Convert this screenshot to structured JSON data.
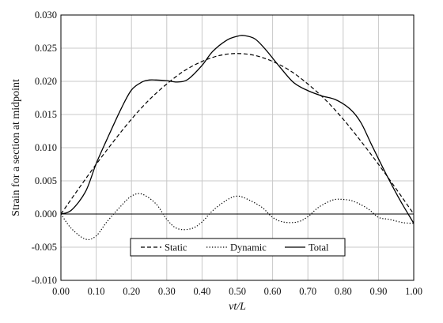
{
  "chart_data": {
    "type": "line",
    "xlabel": "vt/L",
    "ylabel": "Strain for a section at midpoint",
    "xlim": [
      0,
      1
    ],
    "ylim": [
      -0.01,
      0.03
    ],
    "x_ticks": [
      "0.00",
      "0.10",
      "0.20",
      "0.30",
      "0.40",
      "0.50",
      "0.60",
      "0.70",
      "0.80",
      "0.90",
      "1.00"
    ],
    "y_ticks": [
      "-0.010",
      "-0.005",
      "0.000",
      "0.005",
      "0.010",
      "0.015",
      "0.020",
      "0.025",
      "0.030"
    ],
    "grid": true,
    "legend_position": "bottom-center",
    "series": [
      {
        "name": "Static",
        "line_style": "dashed",
        "color": "#000000",
        "x": [
          0.0,
          0.05,
          0.1,
          0.15,
          0.2,
          0.25,
          0.3,
          0.35,
          0.4,
          0.45,
          0.5,
          0.55,
          0.6,
          0.65,
          0.7,
          0.75,
          0.8,
          0.85,
          0.9,
          0.95,
          1.0
        ],
        "y": [
          0.0,
          0.0038,
          0.0075,
          0.011,
          0.0143,
          0.0172,
          0.0196,
          0.0216,
          0.023,
          0.0239,
          0.0242,
          0.0239,
          0.023,
          0.0216,
          0.0196,
          0.0172,
          0.0143,
          0.011,
          0.0075,
          0.0038,
          0.0
        ]
      },
      {
        "name": "Dynamic",
        "line_style": "dotted",
        "color": "#000000",
        "x": [
          0.0,
          0.03,
          0.07,
          0.1,
          0.13,
          0.17,
          0.2,
          0.23,
          0.27,
          0.3,
          0.33,
          0.37,
          0.4,
          0.43,
          0.47,
          0.5,
          0.53,
          0.57,
          0.6,
          0.63,
          0.67,
          0.7,
          0.73,
          0.77,
          0.8,
          0.83,
          0.87,
          0.9,
          0.93,
          0.97,
          1.0
        ],
        "y": [
          0.0,
          -0.0022,
          -0.0038,
          -0.0033,
          -0.0012,
          0.0012,
          0.0027,
          0.003,
          0.0015,
          -0.0008,
          -0.0022,
          -0.0022,
          -0.0012,
          0.0005,
          0.0021,
          0.0027,
          0.0022,
          0.001,
          -0.0005,
          -0.0012,
          -0.0012,
          -0.0004,
          0.001,
          0.0021,
          0.0022,
          0.0019,
          0.0008,
          -0.0005,
          -0.0008,
          -0.0013,
          -0.0014
        ]
      },
      {
        "name": "Total",
        "line_style": "solid",
        "color": "#000000",
        "x": [
          0.0,
          0.03,
          0.07,
          0.1,
          0.13,
          0.17,
          0.2,
          0.23,
          0.25,
          0.27,
          0.3,
          0.33,
          0.36,
          0.4,
          0.43,
          0.47,
          0.5,
          0.52,
          0.55,
          0.58,
          0.62,
          0.66,
          0.7,
          0.74,
          0.78,
          0.82,
          0.85,
          0.88,
          0.92,
          0.96,
          1.0
        ],
        "y": [
          0.0,
          0.0006,
          0.0034,
          0.0076,
          0.0112,
          0.0158,
          0.0187,
          0.0199,
          0.0202,
          0.0202,
          0.0201,
          0.0199,
          0.0203,
          0.0224,
          0.0245,
          0.0262,
          0.0268,
          0.0269,
          0.0264,
          0.0248,
          0.0222,
          0.0198,
          0.0186,
          0.0178,
          0.0172,
          0.0158,
          0.0138,
          0.0105,
          0.0062,
          0.0022,
          -0.0014
        ]
      }
    ]
  }
}
